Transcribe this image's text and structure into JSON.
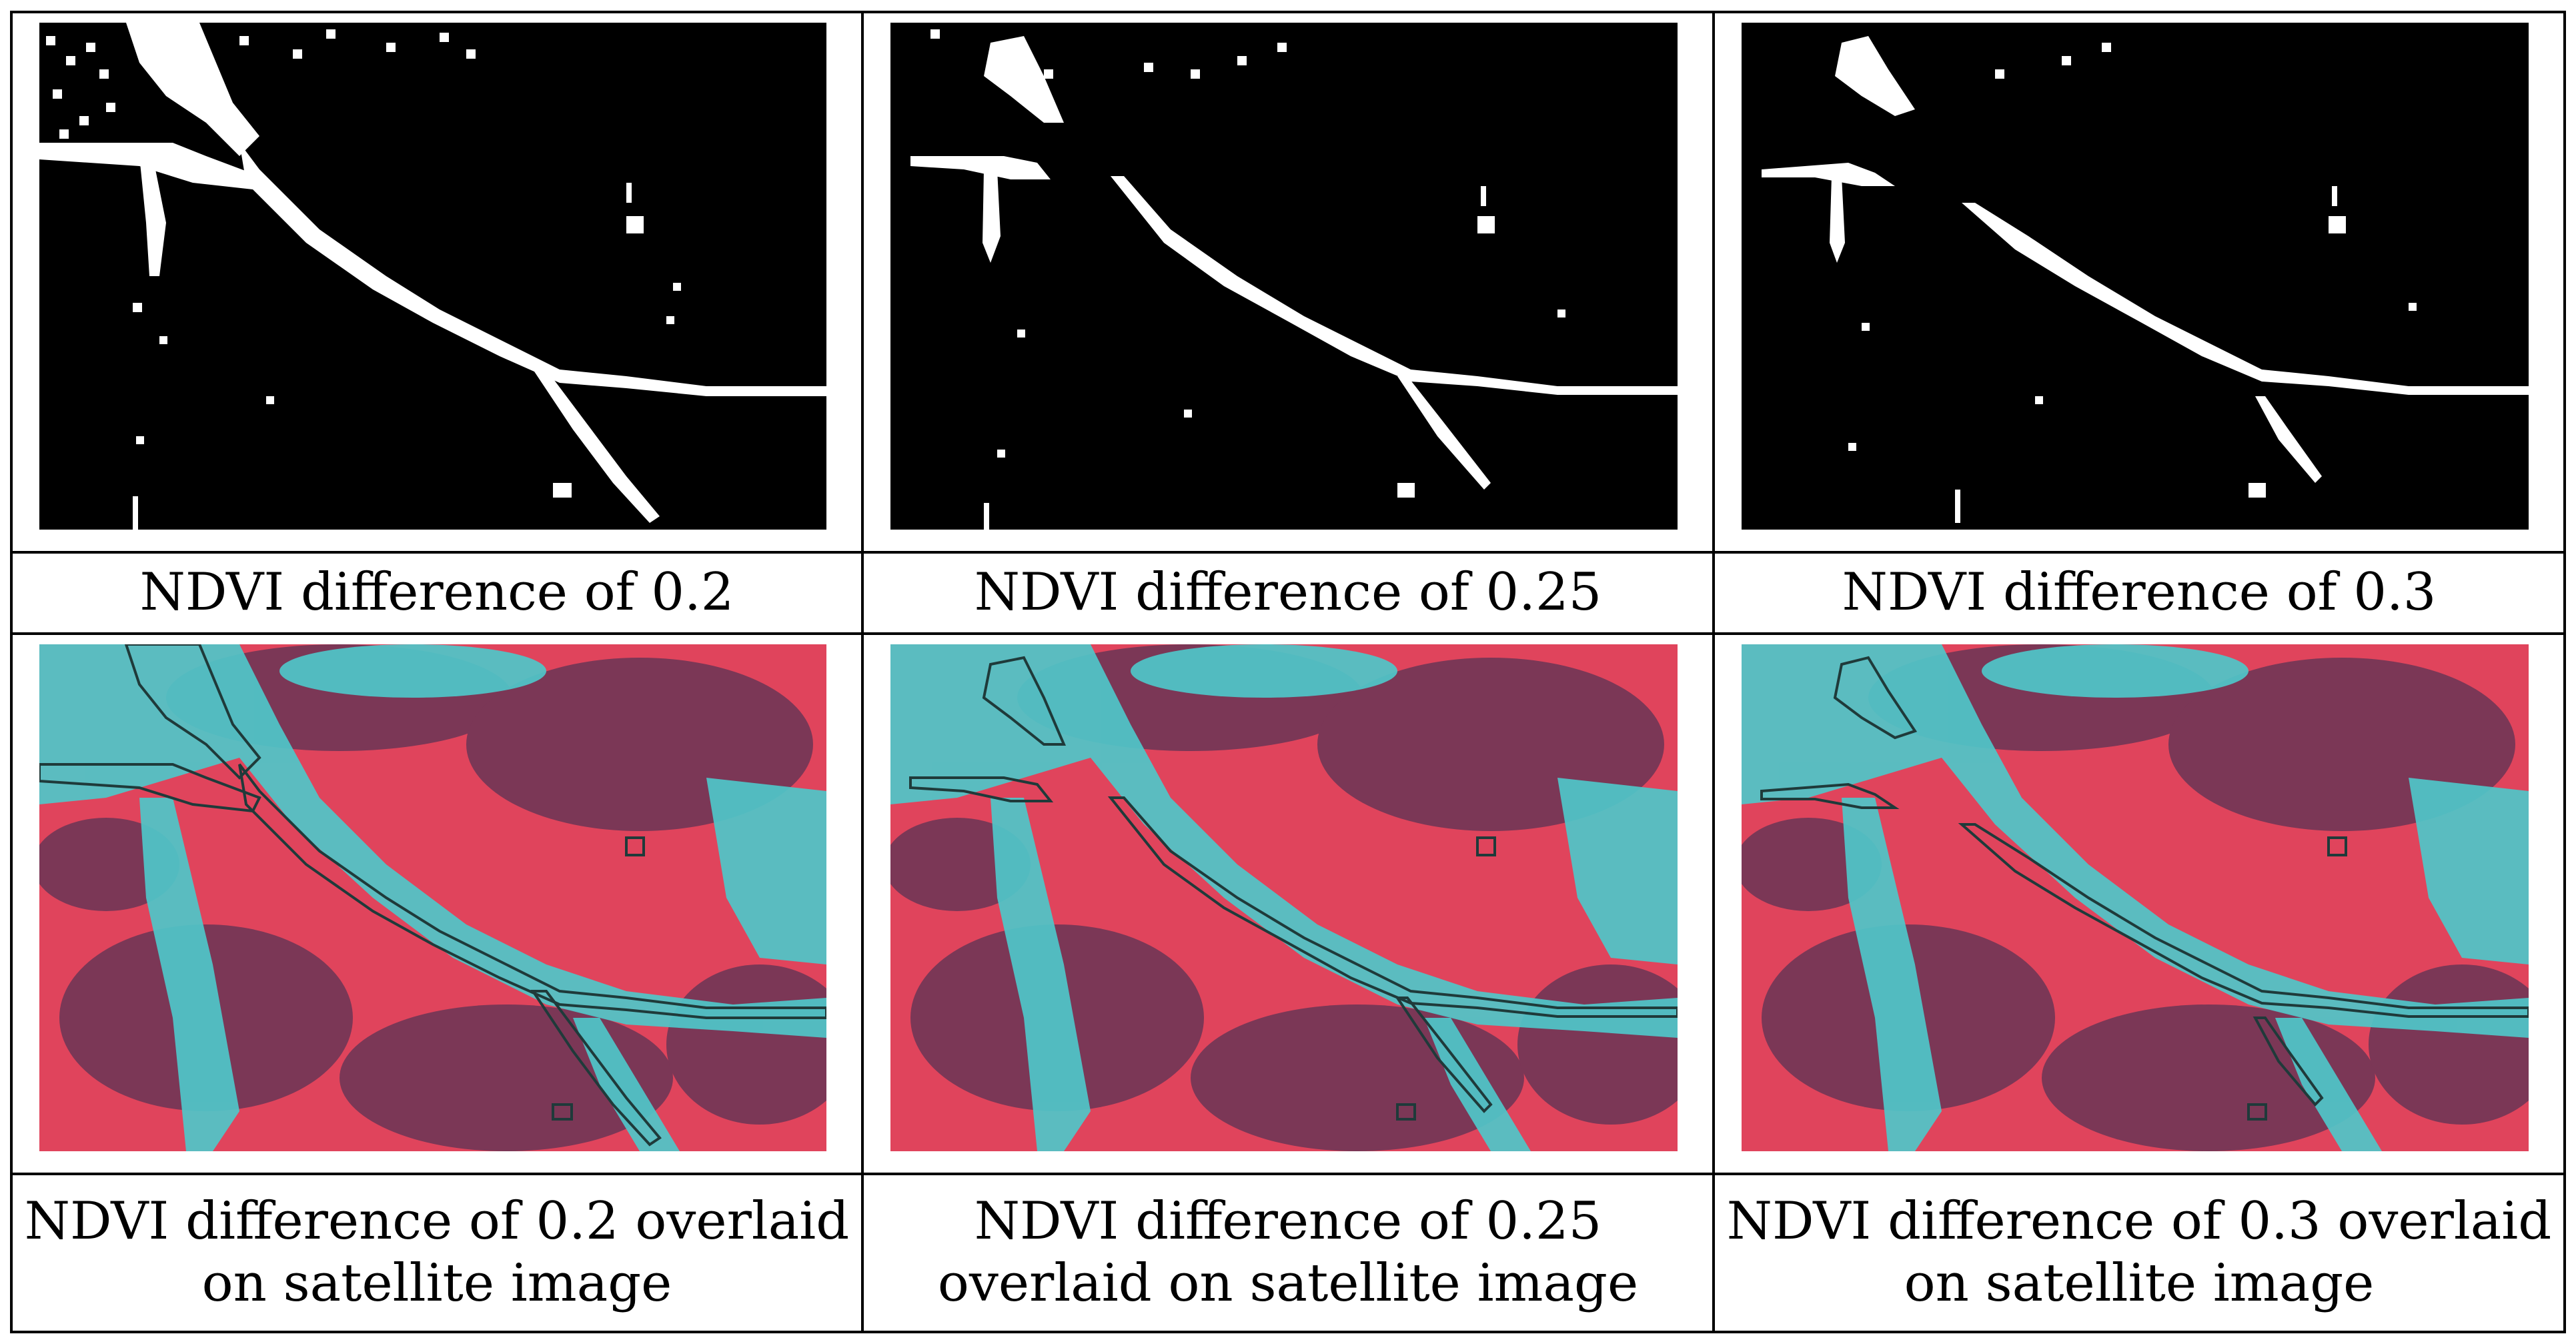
{
  "figure": {
    "binary_captions": [
      "NDVI difference of 0.2",
      "NDVI difference of 0.25",
      "NDVI difference of 0.3"
    ],
    "overlay_captions": [
      "NDVI difference of 0.2 overlaid on satellite image",
      "NDVI difference of 0.25 overlaid on satellite image",
      "NDVI difference of 0.3 overlaid on satellite image"
    ]
  },
  "colors": {
    "mask_background": "#000000",
    "mask_foreground": "#ffffff",
    "vegetation": "#e0445c",
    "water_cyan": "#4fc7c9",
    "shadow": "#5a3354",
    "outline": "#1f3a3a"
  }
}
